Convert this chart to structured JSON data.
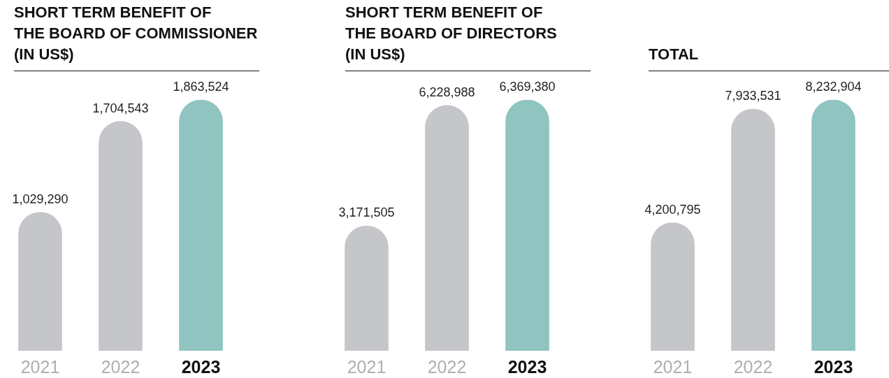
{
  "chart_data": [
    {
      "type": "bar",
      "title": "SHORT TERM BENEFIT OF\nTHE BOARD OF COMMISSIONER\n(IN US$)",
      "categories": [
        "2021",
        "2022",
        "2023"
      ],
      "values": [
        1029290,
        1704543,
        1863524
      ],
      "value_labels": [
        "1,029,290",
        "1,704,543",
        "1,863,524"
      ],
      "colors": [
        "#c5c6c9",
        "#c5c6c9",
        "#8fc4c1"
      ]
    },
    {
      "type": "bar",
      "title": "SHORT TERM BENEFIT OF\nTHE BOARD OF DIRECTORS\n(IN US$)",
      "categories": [
        "2021",
        "2022",
        "2023"
      ],
      "values": [
        3171505,
        6228988,
        6369380
      ],
      "value_labels": [
        "3,171,505",
        "6,228,988",
        "6,369,380"
      ],
      "colors": [
        "#c5c6c9",
        "#c5c6c9",
        "#8fc4c1"
      ]
    },
    {
      "type": "bar",
      "title": "TOTAL",
      "categories": [
        "2021",
        "2022",
        "2023"
      ],
      "values": [
        4200795,
        7933531,
        8232904
      ],
      "value_labels": [
        "4,200,795",
        "7,933,531",
        "8,232,904"
      ],
      "colors": [
        "#c5c6c9",
        "#c5c6c9",
        "#8fc4c1"
      ]
    }
  ]
}
